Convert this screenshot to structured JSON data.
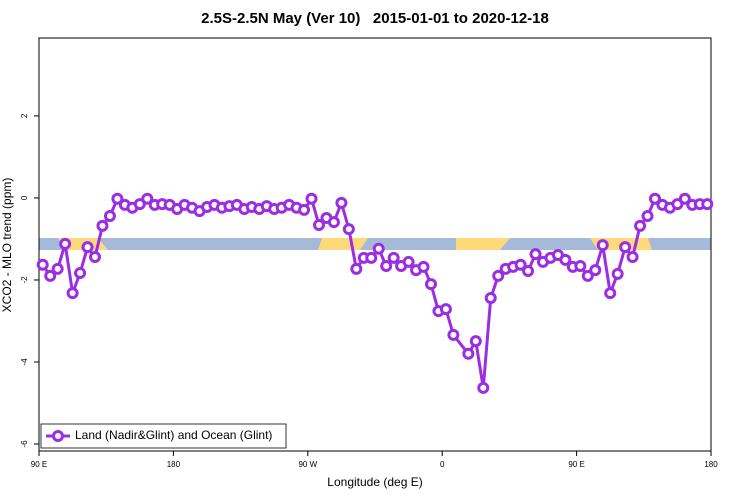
{
  "chart_data": {
    "type": "line",
    "title": "2.5S-2.5N May (Ver 10)   2015-01-01 to 2020-12-18",
    "x_label": "Longitude (deg E)",
    "y_label": "XCO2 - MLO trend (ppm)",
    "xlim": [
      90,
      540
    ],
    "xticks": [
      {
        "value": 90,
        "label": "90 E"
      },
      {
        "value": 180,
        "label": "180"
      },
      {
        "value": 270,
        "label": "90 W"
      },
      {
        "value": 360,
        "label": "0"
      },
      {
        "value": 450,
        "label": "90 E"
      },
      {
        "value": 540,
        "label": "180"
      }
    ],
    "ylim": [
      -6.17,
      3.9
    ],
    "yticks": [
      2,
      0,
      -2,
      -4,
      -6
    ],
    "legend": "bottom-left",
    "x": [
      92.5,
      97.5,
      102.5,
      107.5,
      112.5,
      117.5,
      122.5,
      127.5,
      132.5,
      137.5,
      142.5,
      147.5,
      152.5,
      157.5,
      162.5,
      167.5,
      172.5,
      177.5,
      182.5,
      187.5,
      192.5,
      197.5,
      202.5,
      207.5,
      212.5,
      217.5,
      222.5,
      227.5,
      232.5,
      237.5,
      242.5,
      247.5,
      252.5,
      257.5,
      262.5,
      267.5,
      272.5,
      277.5,
      282.5,
      287.5,
      292.5,
      297.5,
      302.5,
      307.5,
      312.5,
      317.5,
      322.5,
      327.5,
      332.5,
      337.5,
      342.5,
      347.5,
      352.5,
      357.5,
      362.5,
      367.5,
      377.5,
      382.5,
      387.5,
      392.5,
      397.5,
      402.5,
      407.5,
      412.5,
      417.5,
      422.5,
      427.5,
      432.5,
      437.5,
      442.5,
      447.5,
      452.5,
      457.5,
      462.5,
      467.5,
      472.5,
      477.5,
      482.5,
      487.5,
      492.5,
      497.5,
      502.5,
      507.5,
      512.5,
      517.5,
      522.5,
      527.5,
      532.5,
      537.5
    ],
    "series": [
      {
        "name": "Land (Nadir&Glint) and Ocean (Glint)",
        "color": "#9b2ee0",
        "values": [
          -1.63,
          -1.9,
          -1.73,
          -1.12,
          -2.32,
          -1.83,
          -1.2,
          -1.44,
          -0.68,
          -0.44,
          -0.02,
          -0.17,
          -0.24,
          -0.15,
          -0.02,
          -0.17,
          -0.15,
          -0.17,
          -0.27,
          -0.17,
          -0.24,
          -0.32,
          -0.22,
          -0.17,
          -0.24,
          -0.2,
          -0.17,
          -0.27,
          -0.22,
          -0.27,
          -0.2,
          -0.27,
          -0.24,
          -0.17,
          -0.24,
          -0.29,
          -0.02,
          -0.66,
          -0.49,
          -0.59,
          -0.12,
          -0.76,
          -1.73,
          -1.46,
          -1.46,
          -1.24,
          -1.66,
          -1.46,
          -1.66,
          -1.56,
          -1.76,
          -1.68,
          -2.1,
          -2.76,
          -2.71,
          -3.34,
          -3.8,
          -3.49,
          -4.63,
          -2.44,
          -1.9,
          -1.73,
          -1.68,
          -1.63,
          -1.78,
          -1.37,
          -1.56,
          -1.46,
          -1.39,
          -1.51,
          -1.68,
          -1.66,
          -1.9,
          -1.76,
          -1.15,
          -2.32,
          -1.85,
          -1.2,
          -1.44,
          -0.68,
          -0.44,
          -0.02,
          -0.17,
          -0.24,
          -0.15,
          -0.02,
          -0.17,
          -0.15,
          -0.15
        ]
      }
    ]
  }
}
